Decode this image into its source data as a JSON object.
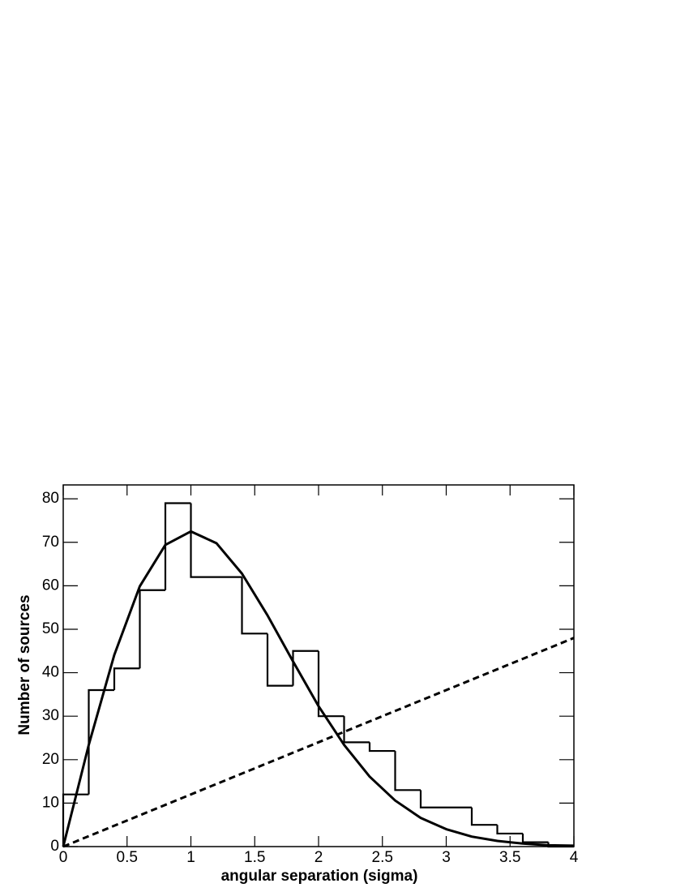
{
  "chart_data": {
    "type": "histogram",
    "x_label": "angular separation (sigma)",
    "y_label": "Number of sources",
    "bins": [
      0,
      0.2,
      0.4,
      0.6,
      0.8,
      1.0,
      1.2,
      1.4,
      1.6,
      1.8,
      2.0,
      2.2,
      2.4,
      2.6,
      2.8,
      3.0,
      3.2,
      3.4,
      3.6,
      3.8,
      4.0
    ],
    "values": [
      12,
      36,
      41,
      59,
      79,
      62,
      62,
      49,
      37,
      45,
      30,
      24,
      22,
      13,
      9,
      9,
      5,
      3,
      1,
      0
    ],
    "color": "#000000",
    "series": [
      {
        "color": "#000000",
        "dashed": false,
        "x": [
          0,
          0.2,
          0.4,
          0.6,
          0.8,
          1.0,
          1.2,
          1.4,
          1.6,
          1.8,
          2.0,
          2.2,
          2.4,
          2.6,
          2.8,
          3.0,
          3.2,
          3.4,
          3.6,
          3.8,
          4.0
        ],
        "values": [
          0,
          23.4,
          44.1,
          59.9,
          69.4,
          72.5,
          69.8,
          62.8,
          53.2,
          42.6,
          32.3,
          23.4,
          16.1,
          10.6,
          6.6,
          4.0,
          2.3,
          1.3,
          0.7,
          0.3,
          0.2
        ]
      },
      {
        "color": "#000000",
        "dashed": true,
        "x": [
          0,
          4
        ],
        "values": [
          0,
          48
        ]
      }
    ],
    "xlim": [
      0,
      4
    ],
    "ylim": [
      0,
      83.2
    ],
    "xticks": [
      0,
      0.5,
      1,
      1.5,
      2,
      2.5,
      3,
      3.5,
      4
    ],
    "yticks": [
      0,
      10,
      20,
      30,
      40,
      50,
      60,
      70,
      80
    ]
  }
}
